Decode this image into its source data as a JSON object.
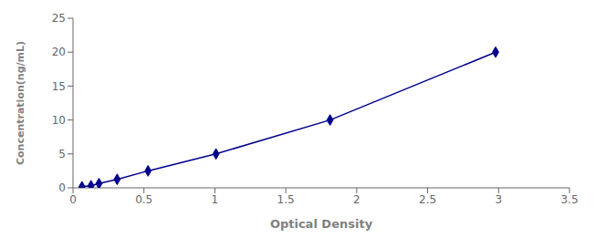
{
  "chart_data": {
    "type": "line",
    "x": [
      0.063,
      0.127,
      0.183,
      0.311,
      0.529,
      1.008,
      1.812,
      2.979
    ],
    "values": [
      0.156,
      0.313,
      0.625,
      1.25,
      2.5,
      5.0,
      10.0,
      20.0
    ],
    "color": "#00008B",
    "marker": "diamond",
    "line_style": "solid",
    "xlabel": "Optical Density",
    "ylabel": "Concentration(ng/mL)",
    "xlim": [
      0,
      3.5
    ],
    "ylim": [
      0,
      25
    ],
    "xticks": [
      0,
      0.5,
      1.0,
      1.5,
      2.0,
      2.5,
      3.0,
      3.5
    ],
    "yticks": [
      0,
      5,
      10,
      15,
      20,
      25
    ],
    "grid": false
  }
}
